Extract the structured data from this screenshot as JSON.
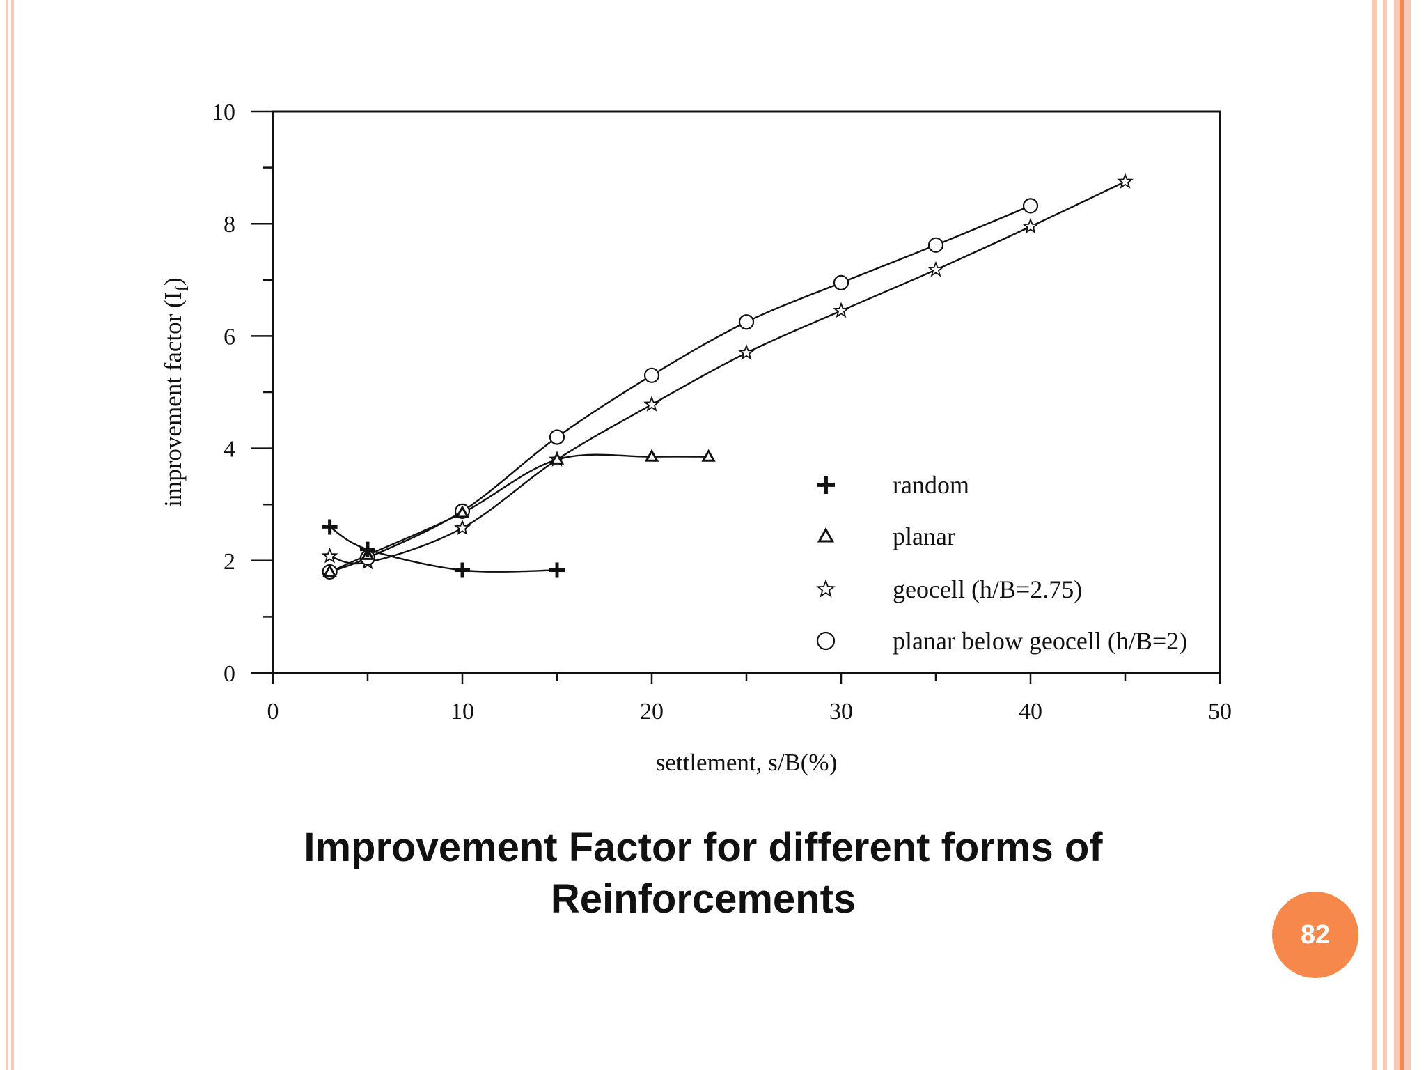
{
  "slide": {
    "caption_line1": "Improvement Factor for different forms of",
    "caption_line2": "Reinforcements",
    "page_number": "82",
    "accent_color": "#F5884A",
    "frame_color": "#F7C9B6"
  },
  "chart_data": {
    "type": "line",
    "title": "",
    "xlabel": "settlement, s/B(%)",
    "ylabel": "improvement factor  (I",
    "ylabel_sub": "f",
    "ylabel_close": ")",
    "xlim": [
      0,
      50
    ],
    "ylim": [
      0,
      10
    ],
    "xticks": [
      0,
      10,
      20,
      30,
      40,
      50
    ],
    "yticks": [
      0,
      2,
      4,
      6,
      8,
      10
    ],
    "grid": false,
    "legend_position": "lower-right",
    "series": [
      {
        "name": "random",
        "marker": "plus",
        "x": [
          3,
          5,
          10,
          15
        ],
        "y": [
          2.6,
          2.2,
          1.83,
          1.83
        ]
      },
      {
        "name": "planar",
        "marker": "triangle",
        "x": [
          3,
          5,
          10,
          15,
          20,
          23
        ],
        "y": [
          1.8,
          2.1,
          2.85,
          3.8,
          3.85,
          3.85
        ]
      },
      {
        "name": "geocell (h/B=2.75)",
        "marker": "star",
        "x": [
          3,
          5,
          10,
          15,
          20,
          25,
          30,
          35,
          40,
          45
        ],
        "y": [
          2.08,
          1.97,
          2.58,
          3.8,
          4.78,
          5.7,
          6.45,
          7.18,
          7.95,
          8.75
        ]
      },
      {
        "name": "planar below geocell (h/B=2)",
        "marker": "circle",
        "x": [
          3,
          5,
          10,
          15,
          20,
          25,
          30,
          35,
          40
        ],
        "y": [
          1.8,
          2.05,
          2.88,
          4.2,
          5.3,
          6.25,
          6.95,
          7.62,
          8.32
        ]
      }
    ]
  }
}
